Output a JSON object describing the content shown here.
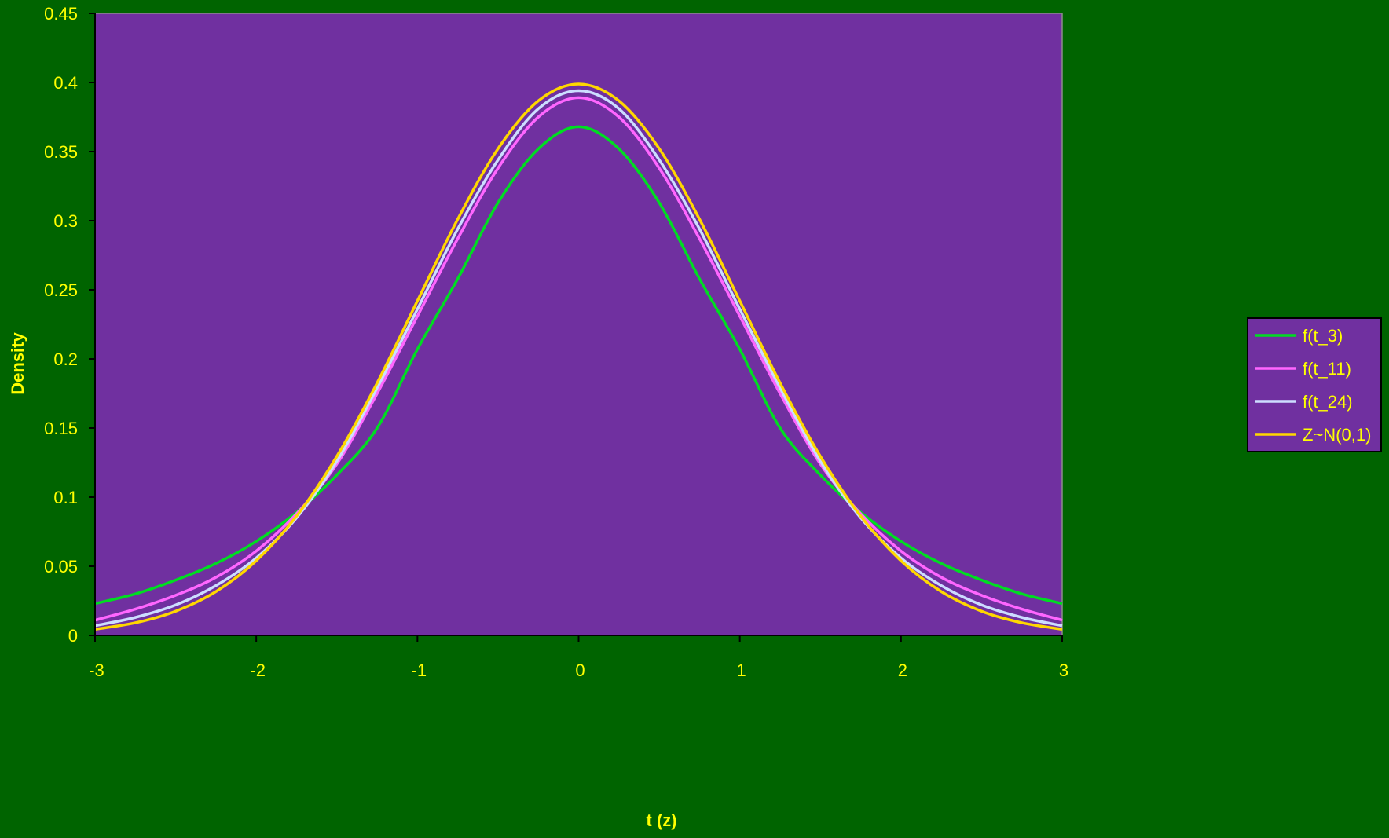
{
  "chart_data": {
    "type": "line",
    "title": "",
    "xlabel": "t (z)",
    "ylabel": "Density",
    "xlim": [
      -3,
      3
    ],
    "ylim": [
      0,
      0.45
    ],
    "x_ticks": [
      "-3",
      "-2",
      "-1",
      "0",
      "1",
      "2",
      "3"
    ],
    "y_ticks": [
      "0",
      "0.05",
      "0.1",
      "0.15",
      "0.2",
      "0.25",
      "0.3",
      "0.35",
      "0.4",
      "0.45"
    ],
    "grid": false,
    "legend_position": "right",
    "x": [
      -3,
      -2.75,
      -2.5,
      -2.25,
      -2,
      -1.75,
      -1.5,
      -1.25,
      -1,
      -0.75,
      -0.5,
      -0.25,
      0,
      0.25,
      0.5,
      0.75,
      1,
      1.25,
      1.5,
      1.75,
      2,
      2.25,
      2.5,
      2.75,
      3
    ],
    "series": [
      {
        "name": "f(t_3)",
        "color": "#00DD22",
        "values": [
          0.023,
          0.03,
          0.04,
          0.052,
          0.068,
          0.089,
          0.116,
          0.15,
          0.207,
          0.258,
          0.313,
          0.352,
          0.368,
          0.352,
          0.313,
          0.258,
          0.207,
          0.15,
          0.116,
          0.089,
          0.068,
          0.052,
          0.04,
          0.03,
          0.023
        ]
      },
      {
        "name": "f(t_11)",
        "color": "#FF66FF",
        "values": [
          0.011,
          0.019,
          0.029,
          0.042,
          0.061,
          0.088,
          0.124,
          0.175,
          0.231,
          0.287,
          0.338,
          0.375,
          0.389,
          0.375,
          0.338,
          0.287,
          0.231,
          0.175,
          0.124,
          0.088,
          0.061,
          0.042,
          0.029,
          0.019,
          0.011
        ]
      },
      {
        "name": "f(t_24)",
        "color": "#CCDDFF",
        "values": [
          0.007,
          0.013,
          0.022,
          0.036,
          0.056,
          0.085,
          0.126,
          0.179,
          0.236,
          0.294,
          0.344,
          0.381,
          0.394,
          0.381,
          0.344,
          0.294,
          0.236,
          0.179,
          0.126,
          0.085,
          0.056,
          0.036,
          0.022,
          0.013,
          0.007
        ]
      },
      {
        "name": "Z~N(0,1)",
        "color": "#FFD700",
        "values": [
          0.0044,
          0.0091,
          0.0175,
          0.0317,
          0.054,
          0.0863,
          0.1295,
          0.1826,
          0.242,
          0.3011,
          0.3521,
          0.3867,
          0.3989,
          0.3867,
          0.3521,
          0.3011,
          0.242,
          0.1826,
          0.1295,
          0.0863,
          0.054,
          0.0317,
          0.0175,
          0.0091,
          0.0044
        ]
      }
    ]
  },
  "colors": {
    "background": "#006400",
    "plot_area": "#7030A0",
    "text": "#FFFF00",
    "legend_bg": "#7030A0"
  }
}
